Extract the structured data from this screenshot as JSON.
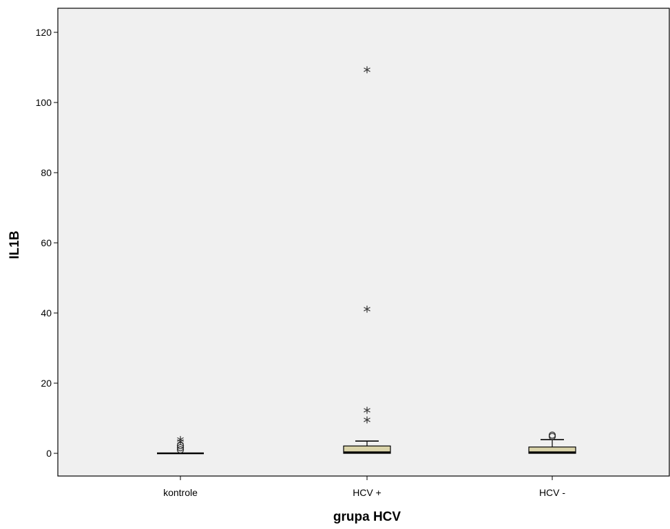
{
  "chart_data": {
    "type": "boxplot",
    "xlabel": "grupa HCV",
    "ylabel": "IL1B",
    "ylim": [
      -6.5,
      126
    ],
    "yticks": [
      0,
      20,
      40,
      60,
      80,
      100,
      120
    ],
    "grid": false,
    "categories": [
      "kontrole",
      "HCV +",
      "HCV -"
    ],
    "boxes": [
      {
        "category": "kontrole",
        "min": 0,
        "q1": 0,
        "median": 0,
        "q3": 0,
        "max": 0,
        "outliers": [
          1.0,
          1.6,
          2.2
        ],
        "extremes": [
          2.8,
          3.4
        ]
      },
      {
        "category": "HCV +",
        "min": 0,
        "q1": 0,
        "median": 0.3,
        "q3": 2.1,
        "max": 3.5,
        "outliers": [],
        "extremes": [
          9.0,
          11.8,
          40.6,
          108.8
        ]
      },
      {
        "category": "HCV -",
        "min": 0,
        "q1": 0,
        "median": 0.3,
        "q3": 1.8,
        "max": 3.9,
        "outliers": [
          4.8,
          5.2
        ],
        "extremes": []
      }
    ],
    "colors": {
      "plot_background": "#f0f0f0",
      "box_fill": "#d9d3a9",
      "line": "#000000"
    }
  }
}
